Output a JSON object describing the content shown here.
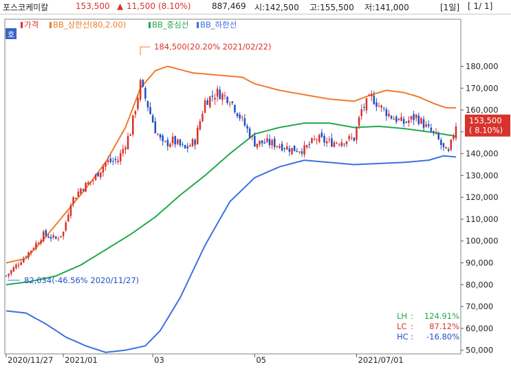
{
  "header": {
    "name": "포스코케미칼",
    "price": "153,500",
    "change_arrow": "▲",
    "change": "11,500",
    "change_pct": "(8.10%)",
    "volume": "887,469",
    "open": "시:142,500",
    "high": "고:155,500",
    "low": "저:141,000",
    "period": "[1일]",
    "page": "[ 1/ 1]"
  },
  "colors": {
    "price_up": "#d8322c",
    "price_down": "#1f4fc6",
    "bb_upper": "#f07a28",
    "bb_middle": "#1ea84a",
    "bb_lower": "#3b6fe0",
    "badge": "#d8322c"
  },
  "chart_data": {
    "type": "line",
    "legend": {
      "handle": "호",
      "items": [
        {
          "label": "가격",
          "color": "#d8322c"
        },
        {
          "label": "BB_상한선(80,2.00)",
          "color": "#f07a28"
        },
        {
          "label": "BB_중심선",
          "color": "#1ea84a"
        },
        {
          "label": "BB_하한선",
          "color": "#3b6fe0"
        }
      ]
    },
    "y_ticks": [
      "180,000",
      "170,000",
      "160,000",
      "150,000",
      "140,000",
      "130,000",
      "120,000",
      "110,000",
      "100,000",
      "90,000",
      "80,000",
      "70,000",
      "60,000",
      "50,000"
    ],
    "y_tick_values": [
      180000,
      170000,
      160000,
      150000,
      140000,
      130000,
      120000,
      110000,
      100000,
      90000,
      80000,
      70000,
      60000,
      50000
    ],
    "ylim": [
      45000,
      190000
    ],
    "x_ticks": [
      {
        "label": "2020/11/27",
        "i": 0
      },
      {
        "label": "2021/01",
        "i": 23
      },
      {
        "label": "03",
        "i": 59
      },
      {
        "label": "05",
        "i": 100
      },
      {
        "label": "2021/07/01",
        "i": 141
      }
    ],
    "n_sessions": 181,
    "last_price_badge": [
      "153,500",
      "( 8.10%)"
    ],
    "last_price": 153500,
    "annotations": {
      "high_label": "184,500(20.20% 2021/02/22)",
      "high": {
        "i": 54,
        "value": 184500
      },
      "low_label": "82,034(-46.56% 2020/11/27)",
      "low": {
        "i": 0,
        "value": 82034
      }
    },
    "stats": [
      {
        "label": "LH",
        "value": "124.91%"
      },
      {
        "label": "LC",
        "value": "87.12%"
      },
      {
        "label": "HC",
        "value": "-16.80%"
      }
    ],
    "series": [
      {
        "name": "가격",
        "kind": "close",
        "points": [
          [
            0,
            84000
          ],
          [
            5,
            90000
          ],
          [
            10,
            96000
          ],
          [
            15,
            103000
          ],
          [
            20,
            101000
          ],
          [
            23,
            104000
          ],
          [
            26,
            118000
          ],
          [
            30,
            124000
          ],
          [
            35,
            128000
          ],
          [
            40,
            136000
          ],
          [
            45,
            137000
          ],
          [
            50,
            150000
          ],
          [
            54,
            172000
          ],
          [
            57,
            162000
          ],
          [
            60,
            151000
          ],
          [
            63,
            144000
          ],
          [
            67,
            146000
          ],
          [
            72,
            142000
          ],
          [
            76,
            146000
          ],
          [
            80,
            164000
          ],
          [
            85,
            168000
          ],
          [
            90,
            165000
          ],
          [
            95,
            155000
          ],
          [
            100,
            145000
          ],
          [
            105,
            145000
          ],
          [
            110,
            144000
          ],
          [
            115,
            142000
          ],
          [
            120,
            142000
          ],
          [
            125,
            147000
          ],
          [
            130,
            145000
          ],
          [
            135,
            146000
          ],
          [
            140,
            147000
          ],
          [
            143,
            160000
          ],
          [
            147,
            166000
          ],
          [
            150,
            162000
          ],
          [
            155,
            157000
          ],
          [
            160,
            154000
          ],
          [
            165,
            157000
          ],
          [
            170,
            151000
          ],
          [
            173,
            148000
          ],
          [
            176,
            142000
          ],
          [
            178,
            140000
          ],
          [
            181,
            153500
          ]
        ]
      },
      {
        "name": "BB_상한선(80,2.00)",
        "kind": "upper",
        "points": [
          [
            0,
            90000
          ],
          [
            8,
            92000
          ],
          [
            16,
            102000
          ],
          [
            24,
            113000
          ],
          [
            32,
            124000
          ],
          [
            40,
            136000
          ],
          [
            48,
            152000
          ],
          [
            54,
            170000
          ],
          [
            60,
            178000
          ],
          [
            65,
            180000
          ],
          [
            75,
            177000
          ],
          [
            85,
            176000
          ],
          [
            95,
            175000
          ],
          [
            100,
            172000
          ],
          [
            110,
            169000
          ],
          [
            120,
            167000
          ],
          [
            130,
            165000
          ],
          [
            140,
            164000
          ],
          [
            147,
            167000
          ],
          [
            153,
            169000
          ],
          [
            160,
            168000
          ],
          [
            166,
            166000
          ],
          [
            172,
            163000
          ],
          [
            177,
            161000
          ],
          [
            181,
            161000
          ]
        ]
      },
      {
        "name": "BB_중심선",
        "kind": "middle",
        "points": [
          [
            0,
            80000
          ],
          [
            10,
            81500
          ],
          [
            20,
            84000
          ],
          [
            30,
            89000
          ],
          [
            40,
            96000
          ],
          [
            50,
            103000
          ],
          [
            60,
            111000
          ],
          [
            70,
            121000
          ],
          [
            80,
            130000
          ],
          [
            90,
            140000
          ],
          [
            100,
            149000
          ],
          [
            110,
            152000
          ],
          [
            120,
            154000
          ],
          [
            130,
            154000
          ],
          [
            140,
            152000
          ],
          [
            150,
            152500
          ],
          [
            160,
            151500
          ],
          [
            170,
            150000
          ],
          [
            181,
            148000
          ]
        ]
      },
      {
        "name": "BB_하한선",
        "kind": "lower",
        "points": [
          [
            0,
            68000
          ],
          [
            8,
            67000
          ],
          [
            16,
            62000
          ],
          [
            24,
            56000
          ],
          [
            32,
            52000
          ],
          [
            40,
            49000
          ],
          [
            48,
            50000
          ],
          [
            56,
            52000
          ],
          [
            62,
            59000
          ],
          [
            70,
            74000
          ],
          [
            80,
            98000
          ],
          [
            90,
            118000
          ],
          [
            100,
            129000
          ],
          [
            110,
            134000
          ],
          [
            120,
            137000
          ],
          [
            130,
            136000
          ],
          [
            140,
            135000
          ],
          [
            150,
            135500
          ],
          [
            160,
            136000
          ],
          [
            170,
            137000
          ],
          [
            176,
            139000
          ],
          [
            181,
            138500
          ]
        ]
      }
    ]
  }
}
